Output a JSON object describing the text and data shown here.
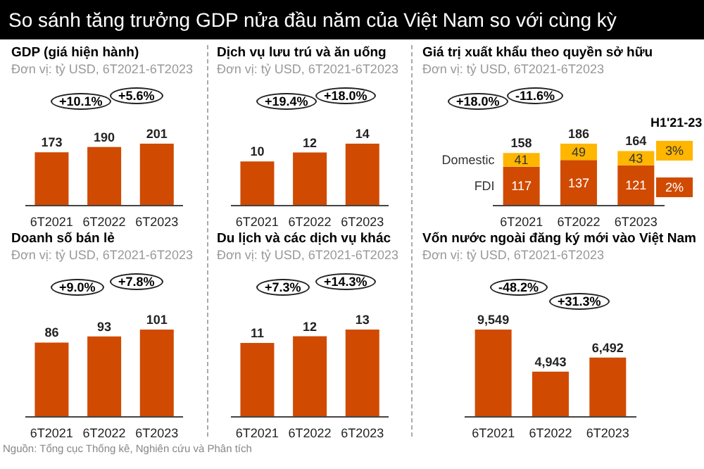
{
  "chart_data": [
    {
      "type": "other",
      "title": "So sánh tăng trưởng GDP nửa đầu năm của Việt Nam so với cùng kỳ",
      "annotations": [
        "Nguồn: Tổng cục Thống kê, Nghiên cứu và Phân tích"
      ]
    },
    {
      "type": "bar",
      "title": "GDP (giá hiện hành)",
      "subtitle": "Đơn vị: tỷ USD, 6T2021-6T2023",
      "categories": [
        "6T2021",
        "6T2022",
        "6T2023"
      ],
      "values": [
        173,
        190,
        201
      ],
      "color": "#d04a02",
      "data_labels": true,
      "annotations": [
        "+10.1%",
        "+5.6%"
      ]
    },
    {
      "type": "bar",
      "title": "Dịch vụ lưu trú và ăn uống",
      "subtitle": "Đơn vị: tỷ USD, 6T2021-6T2023",
      "categories": [
        "6T2021",
        "6T2022",
        "6T2023"
      ],
      "values": [
        10,
        12,
        14
      ],
      "color": "#d04a02",
      "data_labels": true,
      "annotations": [
        "+19.4%",
        "+18.0%"
      ]
    },
    {
      "type": "bar",
      "title": "Giá trị xuất khẩu theo quyền sở hữu",
      "subtitle": "Đơn vị: tỷ USD, 6T2021-6T2023",
      "categories": [
        "6T2021",
        "6T2022",
        "6T2023"
      ],
      "stacked": true,
      "data_labels": true,
      "totals": [
        "158",
        "186",
        "164"
      ],
      "series": [
        {
          "name": "FDI",
          "color": "#d04a02",
          "values": [
            117,
            137,
            121
          ]
        },
        {
          "name": "Domestic",
          "color": "#ffb600",
          "values": [
            41,
            49,
            43
          ]
        }
      ],
      "annotations": [
        "+18.0%",
        "-11.6%",
        "H1'21-23",
        "2%",
        "3%"
      ]
    },
    {
      "type": "bar",
      "title": "Doanh số bán lẻ",
      "subtitle": "Đơn vị: tỷ USD, 6T2021-6T2023",
      "categories": [
        "6T2021",
        "6T2022",
        "6T2023"
      ],
      "values": [
        86,
        93,
        101
      ],
      "color": "#d04a02",
      "data_labels": true,
      "annotations": [
        "+9.0%",
        "+7.8%"
      ]
    },
    {
      "type": "bar",
      "title": "Du lịch và các dịch vụ khác",
      "subtitle": "Đơn vị: tỷ USD, 6T2021-6T2023",
      "categories": [
        "6T2021",
        "6T2022",
        "6T2023"
      ],
      "values": [
        11,
        12,
        13
      ],
      "color": "#d04a02",
      "data_labels": true,
      "annotations": [
        "+7.3%",
        "+14.3%"
      ]
    },
    {
      "type": "bar",
      "title": "Vốn nước ngoài đăng ký mới vào Việt Nam",
      "subtitle": "Đơn vị: tỷ USD, 6T2021-6T2023",
      "categories": [
        "6T2021",
        "6T2022",
        "6T2023"
      ],
      "values": [
        9549,
        4943,
        6492
      ],
      "value_labels": [
        "9,549",
        "4,943",
        "6,492"
      ],
      "color": "#d04a02",
      "annotations": [
        "-48.2%",
        "+31.3%"
      ]
    }
  ]
}
